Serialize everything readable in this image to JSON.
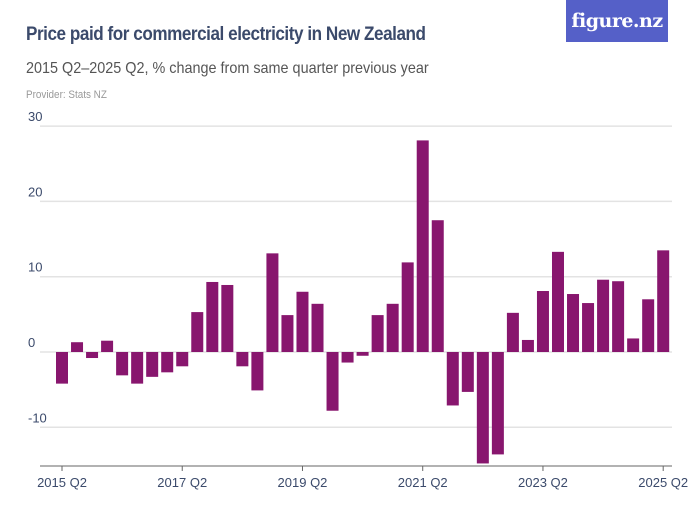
{
  "header": {
    "title": "Price paid for commercial electricity in New Zealand",
    "subtitle": "2015 Q2–2025 Q2, % change from same quarter previous year",
    "provider": "Provider: Stats NZ",
    "logo": "figure.nz"
  },
  "colors": {
    "bar": "#88166e",
    "logo_bg": "#5560c8",
    "grid": "#e3e3e3"
  },
  "chart_data": {
    "type": "bar",
    "title": "Price paid for commercial electricity in New Zealand",
    "subtitle": "2015 Q2–2025 Q2, % change from same quarter previous year",
    "categories": [
      "2015 Q2",
      "2015 Q3",
      "2015 Q4",
      "2016 Q1",
      "2016 Q2",
      "2016 Q3",
      "2016 Q4",
      "2017 Q1",
      "2017 Q2",
      "2017 Q3",
      "2017 Q4",
      "2018 Q1",
      "2018 Q2",
      "2018 Q3",
      "2018 Q4",
      "2019 Q1",
      "2019 Q2",
      "2019 Q3",
      "2019 Q4",
      "2020 Q1",
      "2020 Q2",
      "2020 Q3",
      "2020 Q4",
      "2021 Q1",
      "2021 Q2",
      "2021 Q3",
      "2021 Q4",
      "2022 Q1",
      "2022 Q2",
      "2022 Q3",
      "2022 Q4",
      "2023 Q1",
      "2023 Q2",
      "2023 Q3",
      "2023 Q4",
      "2024 Q1",
      "2024 Q2",
      "2024 Q3",
      "2024 Q4",
      "2025 Q1",
      "2025 Q2"
    ],
    "values": [
      -4.2,
      1.3,
      -0.8,
      1.5,
      -3.1,
      -4.2,
      -3.3,
      -2.7,
      -1.9,
      5.3,
      9.3,
      8.9,
      -1.9,
      -5.1,
      13.1,
      4.9,
      8.0,
      6.4,
      -7.8,
      -1.4,
      -0.5,
      4.9,
      6.4,
      11.9,
      28.1,
      17.5,
      -7.1,
      -5.3,
      -14.8,
      -13.6,
      5.2,
      1.6,
      8.1,
      13.3,
      7.7,
      6.5,
      9.6,
      9.4,
      1.8,
      7.0,
      13.5
    ],
    "x_tick_labels": [
      "2015 Q2",
      "2017 Q2",
      "2019 Q2",
      "2021 Q2",
      "2023 Q2",
      "2025 Q2"
    ],
    "y_tick_labels": [
      "30",
      "20",
      "10",
      "0",
      "-10"
    ],
    "y_ticks": [
      30,
      20,
      10,
      0,
      -10
    ],
    "ylim": [
      -15,
      30
    ],
    "xlabel": "",
    "ylabel": "",
    "grid": true,
    "legend": "none"
  }
}
